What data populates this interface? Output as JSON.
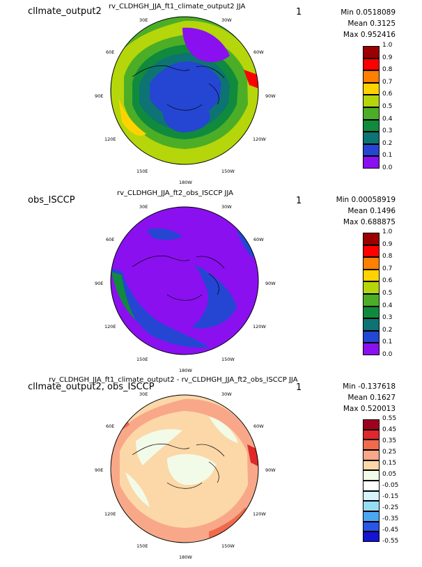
{
  "panels": [
    {
      "case_label": "cllmate_output2",
      "title": "rv_CLDHGH_JJA_ft1_climate_output2  JJA",
      "one_label": "1",
      "stats": {
        "min": "Min 0.0518089",
        "mean": "Mean 0.3125",
        "max": "Max 0.952416"
      },
      "lon_labels": {
        "l30e": "30E",
        "l30w": "30W",
        "l60e": "60E",
        "l60w": "60W",
        "l90e": "90E",
        "l90w": "90W",
        "l120e": "120E",
        "l120w": "120W",
        "l150e": "150E",
        "l150w": "150W",
        "l180w": "180W"
      },
      "colorbar": {
        "colors": [
          "#9a0000",
          "#ff0000",
          "#ff7f00",
          "#ffd300",
          "#b5d60a",
          "#4cae26",
          "#108a3c",
          "#0e7373",
          "#2446d2",
          "#8a10f0"
        ],
        "labels": [
          "1.0",
          "0.9",
          "0.8",
          "0.7",
          "0.6",
          "0.5",
          "0.4",
          "0.3",
          "0.2",
          "0.1",
          "0.0"
        ]
      }
    },
    {
      "case_label": "obs_ISCCP",
      "title": "rv_CLDHGH_JJA_ft2_obs_ISCCP  JJA",
      "one_label": "1",
      "stats": {
        "min": "Min 0.00058919",
        "mean": "Mean 0.1496",
        "max": "Max 0.688875"
      },
      "lon_labels": {
        "l30e": "30E",
        "l30w": "30W",
        "l60e": "60E",
        "l60w": "60W",
        "l90e": "90E",
        "l90w": "90W",
        "l120e": "120E",
        "l120w": "120W",
        "l150e": "150E",
        "l150w": "150W",
        "l180w": "180W"
      },
      "colorbar": {
        "colors": [
          "#9a0000",
          "#ff0000",
          "#ff7f00",
          "#ffd300",
          "#b5d60a",
          "#4cae26",
          "#108a3c",
          "#0e7373",
          "#2446d2",
          "#8a10f0"
        ],
        "labels": [
          "1.0",
          "0.9",
          "0.8",
          "0.7",
          "0.6",
          "0.5",
          "0.4",
          "0.3",
          "0.2",
          "0.1",
          "0.0"
        ]
      }
    },
    {
      "case_label": "cllmate_output2, obs_ISCCP",
      "title": "rv_CLDHGH_JJA_ft1_climate_output2 - rv_CLDHGH_JJA_ft2_obs_ISCCP  JJA",
      "one_label": "1",
      "stats": {
        "min": "Min -0.137618",
        "mean": "Mean 0.1627",
        "max": "Max 0.520013"
      },
      "lon_labels": {
        "l30e": "30E",
        "l30w": "30W",
        "l60e": "60E",
        "l60w": "60W",
        "l90e": "90E",
        "l90w": "90W",
        "l120e": "120E",
        "l120w": "120W",
        "l150e": "150E",
        "l150w": "150W",
        "l180w": "180W"
      },
      "colorbar": {
        "colors": [
          "#a00020",
          "#e0282a",
          "#f06a4c",
          "#f8a888",
          "#fcd8a8",
          "#f2fbe8",
          "#ffffff",
          "#d6f2fb",
          "#96dcf5",
          "#4aa6f0",
          "#2a56e8",
          "#1414d2"
        ],
        "labels": [
          "0.55",
          "0.45",
          "0.35",
          "0.25",
          "0.15",
          "0.05",
          "-0.05",
          "-0.15",
          "-0.25",
          "-0.35",
          "-0.45",
          "-0.55"
        ]
      }
    }
  ]
}
